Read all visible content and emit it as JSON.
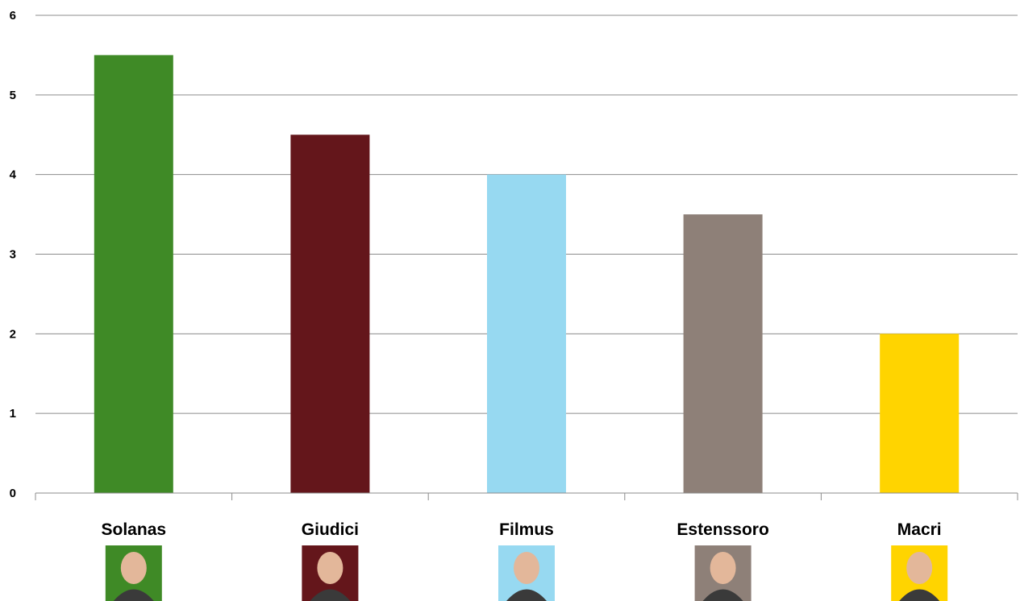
{
  "chart_data": {
    "type": "bar",
    "categories": [
      "Solanas",
      "Giudici",
      "Filmus",
      "Estenssoro",
      "Macri"
    ],
    "values": [
      5.5,
      4.5,
      4,
      3.5,
      2
    ],
    "bar_colors": [
      "#3f8a26",
      "#64161b",
      "#97d9f1",
      "#8e8078",
      "#ffd400"
    ],
    "xlabel": "",
    "ylabel": "",
    "ylim": [
      0,
      6
    ],
    "yticks": [
      0,
      1,
      2,
      3,
      4,
      5,
      6
    ],
    "grid": true,
    "legend": "none",
    "category_images": [
      "portrait-solanas",
      "portrait-giudici",
      "portrait-filmus",
      "portrait-estenssoro",
      "portrait-macri"
    ]
  }
}
